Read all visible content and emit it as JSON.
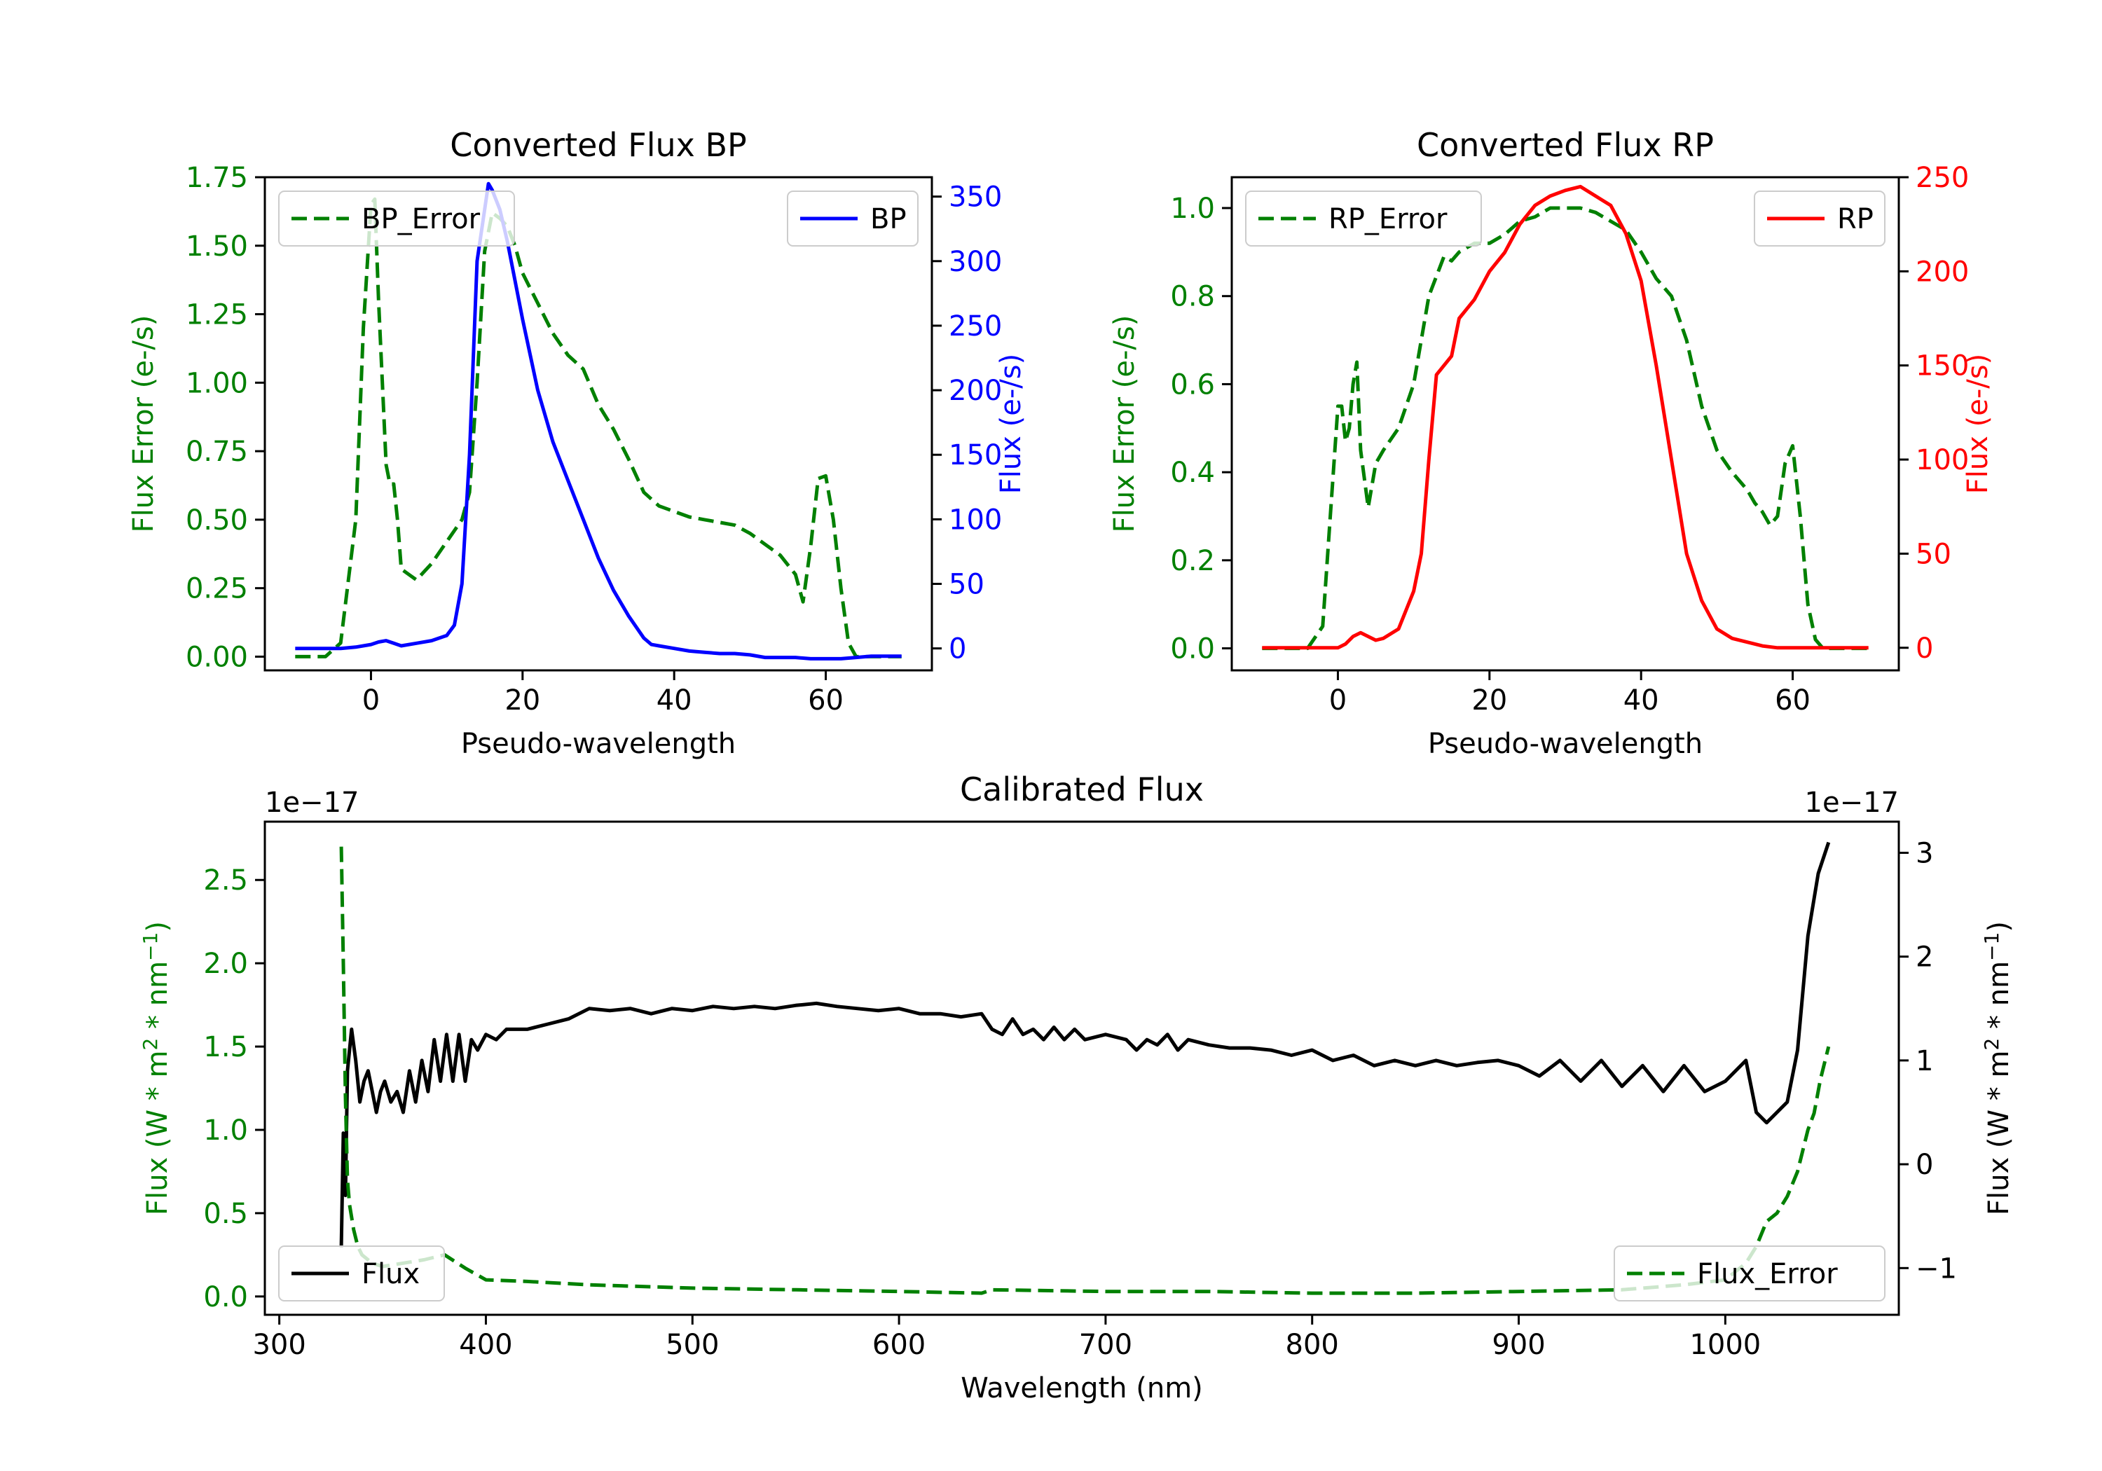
{
  "colors": {
    "green": "#008000",
    "blue": "#0000ff",
    "red": "#ff0000",
    "black": "#000000"
  },
  "chart_data": [
    {
      "type": "line",
      "id": "bp",
      "title": "Converted Flux BP",
      "xlabel": "Pseudo-wavelength",
      "xlim": [
        -14,
        74
      ],
      "xticks": [
        0,
        20,
        40,
        60
      ],
      "left_axis": {
        "label": "Flux Error (e-/s)",
        "color": "#008000",
        "ylim": [
          -0.05,
          1.75
        ],
        "ticks": [
          "0.00",
          "0.25",
          "0.50",
          "0.75",
          "1.00",
          "1.25",
          "1.50",
          "1.75"
        ]
      },
      "right_axis": {
        "label": "Flux (e-/s)",
        "color": "#0000ff",
        "ylim": [
          -17,
          365
        ],
        "ticks": [
          "0",
          "50",
          "100",
          "150",
          "200",
          "250",
          "300",
          "350"
        ]
      },
      "series": [
        {
          "name": "BP_Error",
          "axis": "left",
          "style": "dashed",
          "color": "#008000",
          "x": [
            -10,
            -6,
            -4,
            -2,
            -1,
            0,
            0.5,
            1,
            2,
            2.5,
            3,
            3.5,
            4,
            5,
            6,
            8,
            10,
            11,
            12,
            13,
            14,
            15,
            16,
            17,
            18,
            19,
            20,
            22,
            24,
            26,
            28,
            30,
            32,
            34,
            36,
            38,
            40,
            42,
            44,
            46,
            48,
            50,
            52,
            54,
            56,
            57,
            58,
            59,
            60,
            61,
            62,
            63,
            64,
            66,
            70
          ],
          "y": [
            0.0,
            0.0,
            0.05,
            0.5,
            1.2,
            1.65,
            1.67,
            1.3,
            0.7,
            0.63,
            0.63,
            0.5,
            0.32,
            0.3,
            0.28,
            0.34,
            0.42,
            0.46,
            0.5,
            0.6,
            1.0,
            1.48,
            1.62,
            1.6,
            1.57,
            1.5,
            1.4,
            1.29,
            1.18,
            1.1,
            1.05,
            0.92,
            0.83,
            0.72,
            0.6,
            0.55,
            0.53,
            0.51,
            0.5,
            0.49,
            0.48,
            0.45,
            0.41,
            0.37,
            0.3,
            0.2,
            0.4,
            0.65,
            0.66,
            0.5,
            0.25,
            0.05,
            0.0,
            0.0,
            0.0
          ]
        },
        {
          "name": "BP",
          "axis": "right",
          "style": "solid",
          "color": "#0000ff",
          "x": [
            -10,
            -4,
            -2,
            0,
            1,
            2,
            3,
            4,
            6,
            8,
            10,
            11,
            12,
            13,
            14,
            15,
            15.5,
            16,
            17,
            18,
            20,
            22,
            24,
            26,
            28,
            30,
            32,
            34,
            36,
            37,
            38,
            40,
            42,
            44,
            46,
            48,
            50,
            52,
            54,
            56,
            58,
            60,
            62,
            64,
            66,
            70
          ],
          "y": [
            0,
            0,
            1,
            3,
            5,
            6,
            4,
            2,
            4,
            6,
            10,
            18,
            50,
            150,
            300,
            340,
            360,
            355,
            340,
            315,
            255,
            200,
            160,
            130,
            100,
            70,
            45,
            25,
            8,
            3,
            2,
            0,
            -2,
            -3,
            -4,
            -4,
            -5,
            -7,
            -7,
            -7,
            -8,
            -8,
            -8,
            -7,
            -6,
            -6
          ]
        }
      ],
      "legends": [
        {
          "placement": "upper-left",
          "entries": [
            "BP_Error"
          ]
        },
        {
          "placement": "upper-right",
          "entries": [
            "BP"
          ]
        }
      ]
    },
    {
      "type": "line",
      "id": "rp",
      "title": "Converted Flux RP",
      "xlabel": "Pseudo-wavelength",
      "xlim": [
        -14,
        74
      ],
      "xticks": [
        0,
        20,
        40,
        60
      ],
      "left_axis": {
        "label": "Flux Error (e-/s)",
        "color": "#008000",
        "ylim": [
          -0.05,
          1.07
        ],
        "ticks": [
          "0.0",
          "0.2",
          "0.4",
          "0.6",
          "0.8",
          "1.0"
        ]
      },
      "right_axis": {
        "label": "Flux (e-/s)",
        "color": "#ff0000",
        "ylim": [
          -12,
          250
        ],
        "ticks": [
          "0",
          "50",
          "100",
          "150",
          "200",
          "250"
        ]
      },
      "series": [
        {
          "name": "RP_Error",
          "axis": "left",
          "style": "dashed",
          "color": "#008000",
          "x": [
            -10,
            -4,
            -2,
            -1,
            0,
            0.5,
            1,
            1.5,
            2,
            2.5,
            3,
            4,
            5,
            6,
            8,
            10,
            12,
            14,
            15,
            16,
            18,
            20,
            22,
            24,
            26,
            28,
            30,
            32,
            34,
            36,
            38,
            40,
            42,
            44,
            46,
            48,
            50,
            52,
            54,
            55,
            56,
            57,
            58,
            59,
            60,
            61,
            62,
            63,
            64,
            66,
            70
          ],
          "y": [
            0.0,
            0.0,
            0.05,
            0.3,
            0.55,
            0.55,
            0.47,
            0.5,
            0.6,
            0.65,
            0.45,
            0.32,
            0.42,
            0.45,
            0.5,
            0.6,
            0.8,
            0.89,
            0.88,
            0.9,
            0.92,
            0.92,
            0.94,
            0.97,
            0.98,
            1.0,
            1.0,
            1.0,
            0.99,
            0.97,
            0.95,
            0.9,
            0.84,
            0.8,
            0.7,
            0.55,
            0.45,
            0.4,
            0.36,
            0.33,
            0.31,
            0.28,
            0.3,
            0.42,
            0.46,
            0.3,
            0.1,
            0.02,
            0.0,
            0.0,
            0.0
          ]
        },
        {
          "name": "RP",
          "axis": "right",
          "style": "solid",
          "color": "#ff0000",
          "x": [
            -10,
            -2,
            0,
            1,
            2,
            3,
            4,
            5,
            6,
            8,
            10,
            11,
            12,
            13,
            14,
            15,
            16,
            17,
            18,
            20,
            22,
            24,
            26,
            28,
            30,
            32,
            34,
            36,
            38,
            40,
            42,
            44,
            46,
            48,
            50,
            52,
            54,
            56,
            58,
            60,
            62,
            64,
            66,
            70
          ],
          "y": [
            0,
            0,
            0,
            2,
            6,
            8,
            6,
            4,
            5,
            10,
            30,
            50,
            100,
            145,
            150,
            155,
            175,
            180,
            185,
            200,
            210,
            225,
            235,
            240,
            243,
            245,
            240,
            235,
            220,
            195,
            150,
            100,
            50,
            25,
            10,
            5,
            3,
            1,
            0,
            0,
            0,
            0,
            0,
            0
          ]
        }
      ],
      "legends": [
        {
          "placement": "upper-left",
          "entries": [
            "RP_Error"
          ]
        },
        {
          "placement": "upper-right",
          "entries": [
            "RP"
          ]
        }
      ]
    },
    {
      "type": "line",
      "id": "cal",
      "title": "Calibrated Flux",
      "xlabel": "Wavelength (nm)",
      "xlim": [
        293,
        1084
      ],
      "xticks": [
        300,
        400,
        500,
        600,
        700,
        800,
        900,
        1000
      ],
      "left_axis": {
        "label": "Flux (W * m^2 * nm^-1)",
        "color": "#008000",
        "offset_text": "1e−17",
        "ylim": [
          -0.11,
          2.85
        ],
        "ticks": [
          "0.0",
          "0.5",
          "1.0",
          "1.5",
          "2.0",
          "2.5"
        ]
      },
      "right_axis": {
        "label": "Flux (W * m^2 * nm^-1)",
        "color": "#000000",
        "offset_text": "1e−17",
        "ylim": [
          -1.45,
          3.3
        ],
        "ticks": [
          "−1",
          "0",
          "1",
          "2",
          "3"
        ]
      },
      "series": [
        {
          "name": "Flux",
          "axis": "right",
          "style": "solid",
          "color": "#000000",
          "x": [
            330,
            331,
            332,
            333,
            335,
            337,
            339,
            341,
            343,
            345,
            347,
            349,
            351,
            354,
            357,
            360,
            363,
            366,
            369,
            372,
            375,
            378,
            381,
            384,
            387,
            390,
            393,
            396,
            400,
            405,
            410,
            420,
            430,
            440,
            450,
            460,
            470,
            480,
            490,
            500,
            510,
            520,
            530,
            540,
            550,
            560,
            570,
            580,
            590,
            600,
            610,
            620,
            630,
            640,
            645,
            650,
            655,
            660,
            665,
            670,
            675,
            680,
            685,
            690,
            700,
            710,
            715,
            720,
            725,
            730,
            735,
            740,
            750,
            760,
            770,
            780,
            790,
            800,
            810,
            820,
            830,
            840,
            850,
            860,
            870,
            880,
            890,
            900,
            910,
            920,
            930,
            940,
            950,
            960,
            970,
            980,
            990,
            1000,
            1010,
            1015,
            1020,
            1025,
            1030,
            1035,
            1040,
            1045,
            1050
          ],
          "y": [
            -0.8,
            0.3,
            -0.3,
            0.9,
            1.3,
            1.0,
            0.6,
            0.8,
            0.9,
            0.7,
            0.5,
            0.7,
            0.8,
            0.6,
            0.7,
            0.5,
            0.9,
            0.6,
            1.0,
            0.7,
            1.2,
            0.8,
            1.25,
            0.8,
            1.25,
            0.8,
            1.2,
            1.1,
            1.25,
            1.2,
            1.3,
            1.3,
            1.35,
            1.4,
            1.5,
            1.48,
            1.5,
            1.45,
            1.5,
            1.48,
            1.52,
            1.5,
            1.52,
            1.5,
            1.53,
            1.55,
            1.52,
            1.5,
            1.48,
            1.5,
            1.45,
            1.45,
            1.42,
            1.45,
            1.3,
            1.25,
            1.4,
            1.25,
            1.3,
            1.2,
            1.32,
            1.2,
            1.3,
            1.2,
            1.25,
            1.2,
            1.1,
            1.2,
            1.15,
            1.25,
            1.1,
            1.2,
            1.15,
            1.12,
            1.12,
            1.1,
            1.05,
            1.1,
            1.0,
            1.05,
            0.95,
            1.0,
            0.95,
            1.0,
            0.95,
            0.98,
            1.0,
            0.95,
            0.85,
            1.0,
            0.8,
            1.0,
            0.75,
            0.95,
            0.7,
            0.95,
            0.7,
            0.8,
            1.0,
            0.5,
            0.4,
            0.5,
            0.6,
            1.1,
            2.2,
            2.8,
            3.1
          ]
        },
        {
          "name": "Flux_Error",
          "axis": "left",
          "style": "dashed",
          "color": "#008000",
          "x": [
            330,
            331,
            332,
            333,
            334,
            336,
            338,
            340,
            345,
            350,
            360,
            370,
            380,
            390,
            400,
            420,
            450,
            500,
            550,
            600,
            640,
            645,
            700,
            750,
            800,
            850,
            900,
            950,
            980,
            1000,
            1010,
            1015,
            1020,
            1025,
            1030,
            1035,
            1040,
            1043,
            1046,
            1050
          ],
          "y": [
            2.7,
            2.0,
            1.2,
            0.7,
            0.55,
            0.4,
            0.3,
            0.25,
            0.2,
            0.18,
            0.2,
            0.22,
            0.25,
            0.17,
            0.1,
            0.09,
            0.07,
            0.05,
            0.04,
            0.03,
            0.02,
            0.04,
            0.03,
            0.03,
            0.02,
            0.02,
            0.03,
            0.04,
            0.07,
            0.1,
            0.2,
            0.3,
            0.45,
            0.5,
            0.6,
            0.75,
            1.0,
            1.1,
            1.3,
            1.5
          ]
        }
      ],
      "legends": [
        {
          "placement": "lower-left",
          "entries": [
            "Flux"
          ]
        },
        {
          "placement": "lower-right",
          "entries": [
            "Flux_Error"
          ]
        }
      ]
    }
  ]
}
